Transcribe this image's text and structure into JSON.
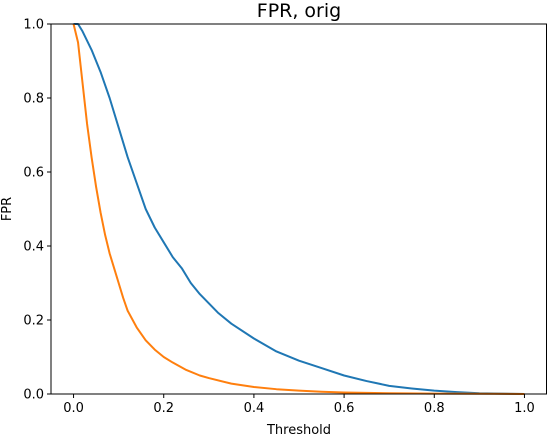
{
  "chart_data": {
    "type": "line",
    "title": "FPR, orig",
    "xlabel": "Threshold",
    "ylabel": "FPR",
    "xlim": [
      -0.05,
      1.05
    ],
    "ylim": [
      0.0,
      1.0
    ],
    "x_ticks": [
      0.0,
      0.2,
      0.4,
      0.6,
      0.8,
      1.0
    ],
    "y_ticks": [
      0.0,
      0.2,
      0.4,
      0.6,
      0.8,
      1.0
    ],
    "x_tick_labels": [
      "0.0",
      "0.2",
      "0.4",
      "0.6",
      "0.8",
      "1.0"
    ],
    "y_tick_labels": [
      "0.0",
      "0.2",
      "0.4",
      "0.6",
      "0.8",
      "1.0"
    ],
    "grid": false,
    "legend": "none",
    "series": [
      {
        "color": "#1f77b4",
        "x": [
          0.0,
          0.01,
          0.02,
          0.04,
          0.06,
          0.08,
          0.1,
          0.12,
          0.14,
          0.16,
          0.18,
          0.2,
          0.22,
          0.24,
          0.26,
          0.28,
          0.3,
          0.32,
          0.35,
          0.4,
          0.45,
          0.5,
          0.55,
          0.6,
          0.65,
          0.7,
          0.75,
          0.8,
          0.85,
          0.9,
          0.95,
          1.0
        ],
        "y": [
          1.0,
          1.0,
          0.98,
          0.93,
          0.87,
          0.8,
          0.72,
          0.64,
          0.57,
          0.5,
          0.45,
          0.41,
          0.37,
          0.34,
          0.3,
          0.27,
          0.245,
          0.22,
          0.19,
          0.15,
          0.115,
          0.09,
          0.07,
          0.05,
          0.035,
          0.022,
          0.015,
          0.009,
          0.005,
          0.002,
          0.001,
          0.0
        ]
      },
      {
        "color": "#ff7f0e",
        "x": [
          0.0,
          0.01,
          0.02,
          0.03,
          0.04,
          0.05,
          0.06,
          0.07,
          0.08,
          0.09,
          0.1,
          0.11,
          0.12,
          0.14,
          0.16,
          0.18,
          0.2,
          0.22,
          0.25,
          0.28,
          0.3,
          0.35,
          0.4,
          0.45,
          0.5,
          0.55,
          0.6,
          0.7,
          0.8,
          0.9,
          1.0
        ],
        "y": [
          1.0,
          0.95,
          0.84,
          0.73,
          0.64,
          0.56,
          0.49,
          0.43,
          0.38,
          0.34,
          0.3,
          0.26,
          0.225,
          0.18,
          0.145,
          0.12,
          0.1,
          0.085,
          0.065,
          0.05,
          0.043,
          0.028,
          0.019,
          0.013,
          0.009,
          0.006,
          0.004,
          0.002,
          0.001,
          0.0005,
          0.0
        ]
      }
    ]
  }
}
